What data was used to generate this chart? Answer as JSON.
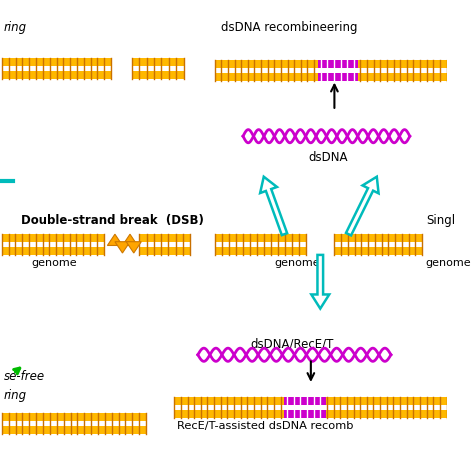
{
  "bg_color": "#ffffff",
  "gold": "#FFB800",
  "gold_stripe": "#E8A000",
  "purple": "#CC00CC",
  "teal": "#00BBBB",
  "green": "#00BB00",
  "black": "#000000",
  "orange_tri": "#FFA500",
  "labels": {
    "ring_tl": "ring",
    "dsdna_recom": "dsDNA recombineering",
    "dsdna": "dsDNA",
    "dsb": "Double-strand break  (DSB)",
    "genome": "genome",
    "singl": "Singl",
    "dsdna_rece": "dsDNA/RecE/T",
    "rece_assisted": "RecE/T-assisted dsDNA recomb",
    "nuclease_free1": "se-free",
    "nuclease_free2": "ring"
  }
}
